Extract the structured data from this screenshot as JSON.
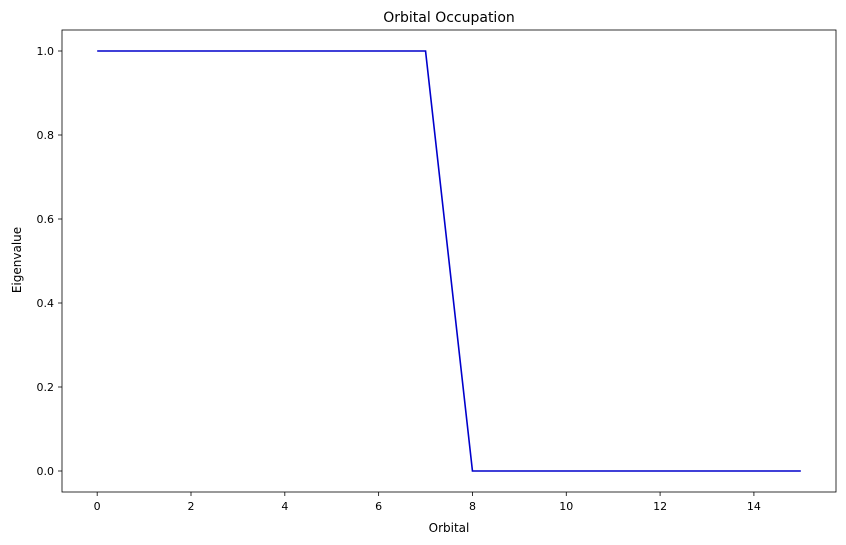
{
  "chart_data": {
    "type": "line",
    "title": "Orbital Occupation",
    "xlabel": "Orbital",
    "ylabel": "Eigenvalue",
    "xlim": [
      -0.75,
      15.75
    ],
    "ylim": [
      -0.05,
      1.05
    ],
    "xticks": [
      0,
      2,
      4,
      6,
      8,
      10,
      12,
      14
    ],
    "yticks": [
      0.0,
      0.2,
      0.4,
      0.6,
      0.8,
      1.0
    ],
    "grid": false,
    "series": [
      {
        "color": "#0000cc",
        "x": [
          0,
          1,
          2,
          3,
          4,
          5,
          6,
          7,
          8,
          9,
          10,
          11,
          12,
          13,
          14,
          15
        ],
        "y": [
          1.0,
          1.0,
          1.0,
          1.0,
          1.0,
          1.0,
          1.0,
          1.0,
          0.0,
          0.0,
          0.0,
          0.0,
          0.0,
          0.0,
          0.0,
          0.0
        ]
      }
    ]
  }
}
